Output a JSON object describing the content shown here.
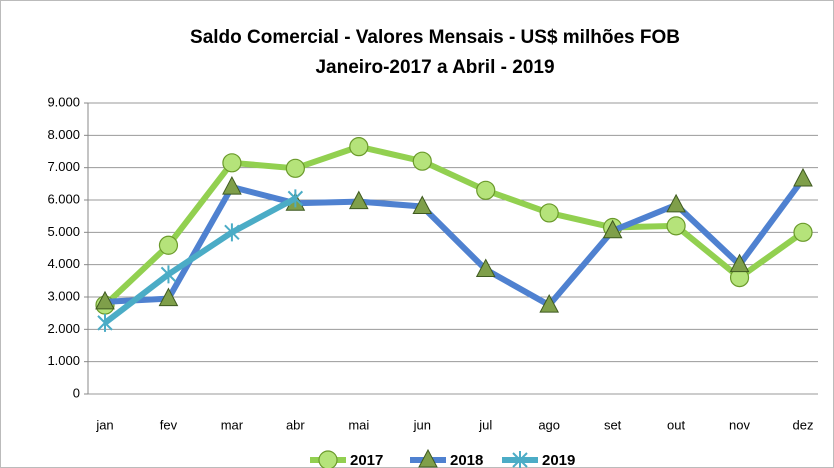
{
  "chart_data": {
    "type": "line",
    "title": "Saldo Comercial - Valores Mensais - US$ milhões FOB",
    "subtitle": "Janeiro-2017 a Abril - 2019",
    "categories": [
      "jan",
      "fev",
      "mar",
      "abr",
      "mai",
      "jun",
      "jul",
      "ago",
      "set",
      "out",
      "nov",
      "dez"
    ],
    "series": [
      {
        "name": "2017",
        "color": "#92d050",
        "marker": "circle",
        "values": [
          2750,
          4600,
          7150,
          6980,
          7650,
          7200,
          6300,
          5600,
          5150,
          5200,
          3600,
          5000
        ]
      },
      {
        "name": "2018",
        "color": "#4f81d0",
        "marker": "triangle",
        "values": [
          2850,
          2950,
          6400,
          5900,
          5950,
          5800,
          3850,
          2750,
          5050,
          5850,
          4000,
          6650
        ]
      },
      {
        "name": "2019",
        "color": "#4bacc6",
        "marker": "star",
        "values": [
          2200,
          3700,
          5000,
          6050,
          null,
          null,
          null,
          null,
          null,
          null,
          null,
          null
        ]
      }
    ],
    "ylim": [
      0,
      9000
    ],
    "yticks": [
      0,
      {
        "value": 1000,
        "label": "1.000"
      },
      {
        "value": 2000,
        "label": "2.000"
      },
      {
        "value": 3000,
        "label": "3.000"
      },
      {
        "value": 4000,
        "label": "4.000"
      },
      {
        "value": 5000,
        "label": "5.000"
      },
      {
        "value": 6000,
        "label": "6.000"
      },
      {
        "value": 7000,
        "label": "7.000"
      },
      {
        "value": 8000,
        "label": "8.000"
      },
      {
        "value": 9000,
        "label": "9.000"
      }
    ],
    "grid": true,
    "legend": "bottom"
  }
}
